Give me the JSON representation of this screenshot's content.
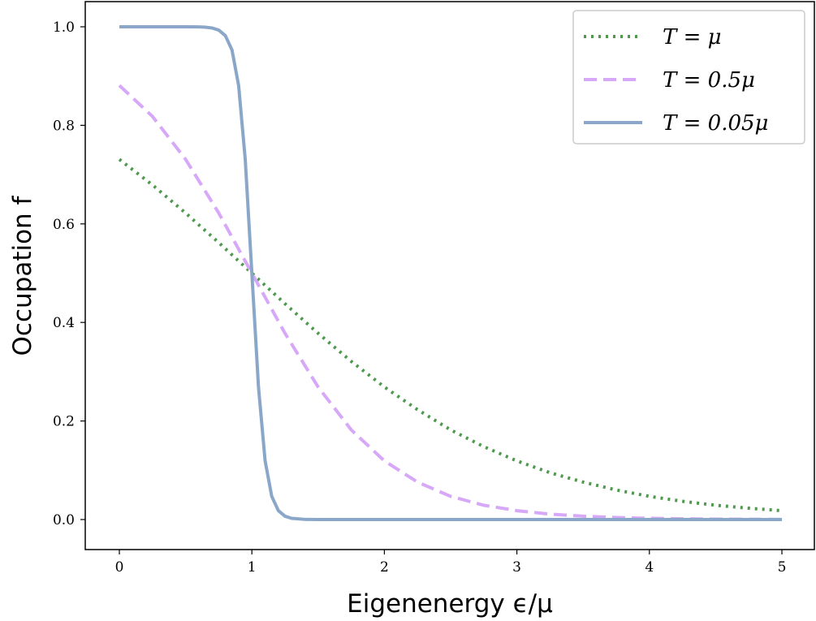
{
  "chart_data": {
    "type": "line",
    "xlabel": "Eigenenergy ϵ/μ",
    "ylabel": "Occupation f",
    "xlim": [
      -0.26,
      5.26
    ],
    "ylim": [
      -0.05,
      1.05
    ],
    "xticks": [
      "0",
      "1",
      "2",
      "3",
      "4",
      "5"
    ],
    "yticks": [
      "0.0",
      "0.2",
      "0.4",
      "0.6",
      "0.8",
      "1.0"
    ],
    "grid": false,
    "legend_position": "top-right",
    "series": [
      {
        "name": "T = μ",
        "color": "#4d9a4d",
        "style": "dotted",
        "x": [
          0,
          0.25,
          0.5,
          0.75,
          1,
          1.25,
          1.5,
          1.75,
          2,
          2.25,
          2.5,
          2.75,
          3,
          3.25,
          3.5,
          3.75,
          4,
          4.25,
          4.5,
          4.75,
          5
        ],
        "y": [
          0.731,
          0.679,
          0.622,
          0.562,
          0.5,
          0.438,
          0.378,
          0.321,
          0.269,
          0.223,
          0.182,
          0.148,
          0.119,
          0.095,
          0.076,
          0.06,
          0.047,
          0.037,
          0.029,
          0.023,
          0.018
        ]
      },
      {
        "name": "T = 0.5μ",
        "color": "#d7a8f7",
        "style": "dashed",
        "x": [
          0,
          0.25,
          0.5,
          0.75,
          1,
          1.25,
          1.5,
          1.75,
          2,
          2.25,
          2.5,
          2.75,
          3,
          3.25,
          3.5,
          3.75,
          4,
          4.25,
          4.5,
          4.75,
          5
        ],
        "y": [
          0.881,
          0.818,
          0.731,
          0.622,
          0.5,
          0.378,
          0.269,
          0.182,
          0.119,
          0.076,
          0.047,
          0.029,
          0.018,
          0.011,
          0.0067,
          0.0041,
          0.0025,
          0.0015,
          0.0009,
          0.0006,
          0.0003
        ]
      },
      {
        "name": "T = 0.05μ",
        "color": "#8aa7ca",
        "style": "solid",
        "x": [
          0,
          0.5,
          0.6,
          0.65,
          0.7,
          0.75,
          0.8,
          0.85,
          0.9,
          0.95,
          1.0,
          1.05,
          1.1,
          1.15,
          1.2,
          1.25,
          1.3,
          1.4,
          1.5,
          5
        ],
        "y": [
          1.0,
          1.0,
          0.9997,
          0.9991,
          0.9975,
          0.9933,
          0.982,
          0.953,
          0.881,
          0.731,
          0.5,
          0.269,
          0.119,
          0.047,
          0.018,
          0.0067,
          0.0025,
          0.0003,
          0.0,
          0.0
        ]
      }
    ]
  }
}
